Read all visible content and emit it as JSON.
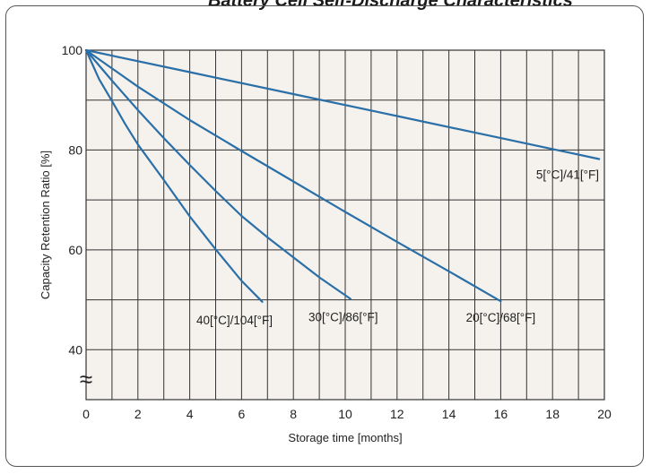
{
  "page": {
    "title": "Battery Cell Self-Discharge Characteristics"
  },
  "chart_data": {
    "type": "line",
    "title": "Battery Cell Self-Discharge Characteristics",
    "xlabel": "Storage time [months]",
    "ylabel": "Capacity Retention Ratio [%]",
    "xlim": [
      0,
      20
    ],
    "ylim": [
      40,
      100
    ],
    "plot_y_bottom": 30,
    "x_ticks": [
      0,
      2,
      4,
      6,
      8,
      10,
      12,
      14,
      16,
      18,
      20
    ],
    "y_ticks": [
      40,
      60,
      80,
      100
    ],
    "x_tick_labels": [
      "0",
      "2",
      "4",
      "6",
      "8",
      "10",
      "12",
      "14",
      "16",
      "18",
      "20"
    ],
    "y_tick_labels": [
      "40",
      "60",
      "80",
      "100"
    ],
    "axis_break": "≈",
    "grid": true,
    "colors": {
      "line": "#2a6fa8",
      "plot_bg": "#f5f2ed",
      "grid": "#333333"
    },
    "series": [
      {
        "name": "5[°C]/41[°F]",
        "label": "5[°C]/41[°F]",
        "x": [
          0,
          4,
          8,
          12,
          16,
          19.8
        ],
        "y": [
          100,
          95.6,
          91.2,
          86.8,
          82.4,
          78.2
        ]
      },
      {
        "name": "20[°C]/68[°F]",
        "label": "20[°C]/68[°F]",
        "x": [
          0,
          2,
          4,
          6,
          8,
          10,
          12,
          14,
          16
        ],
        "y": [
          100,
          92.7,
          86.0,
          79.8,
          73.7,
          67.6,
          61.6,
          55.7,
          49.7
        ]
      },
      {
        "name": "30[°C]/86[°F]",
        "label": "30[°C]/86[°F]",
        "x": [
          0,
          1,
          2,
          3,
          4,
          5,
          6,
          7,
          8,
          9,
          10.2
        ],
        "y": [
          100,
          93.9,
          88.0,
          82.4,
          77.0,
          71.8,
          66.8,
          62.5,
          58.5,
          54.5,
          50.2
        ]
      },
      {
        "name": "40[°C]/104[°F]",
        "label": "40[°C]/104[°F]",
        "x": [
          0,
          0.5,
          1,
          1.5,
          2,
          3,
          4,
          5,
          6,
          6.8
        ],
        "y": [
          100,
          94.2,
          89.8,
          85.3,
          81.1,
          74.0,
          66.7,
          60.1,
          53.8,
          49.6
        ]
      }
    ]
  }
}
